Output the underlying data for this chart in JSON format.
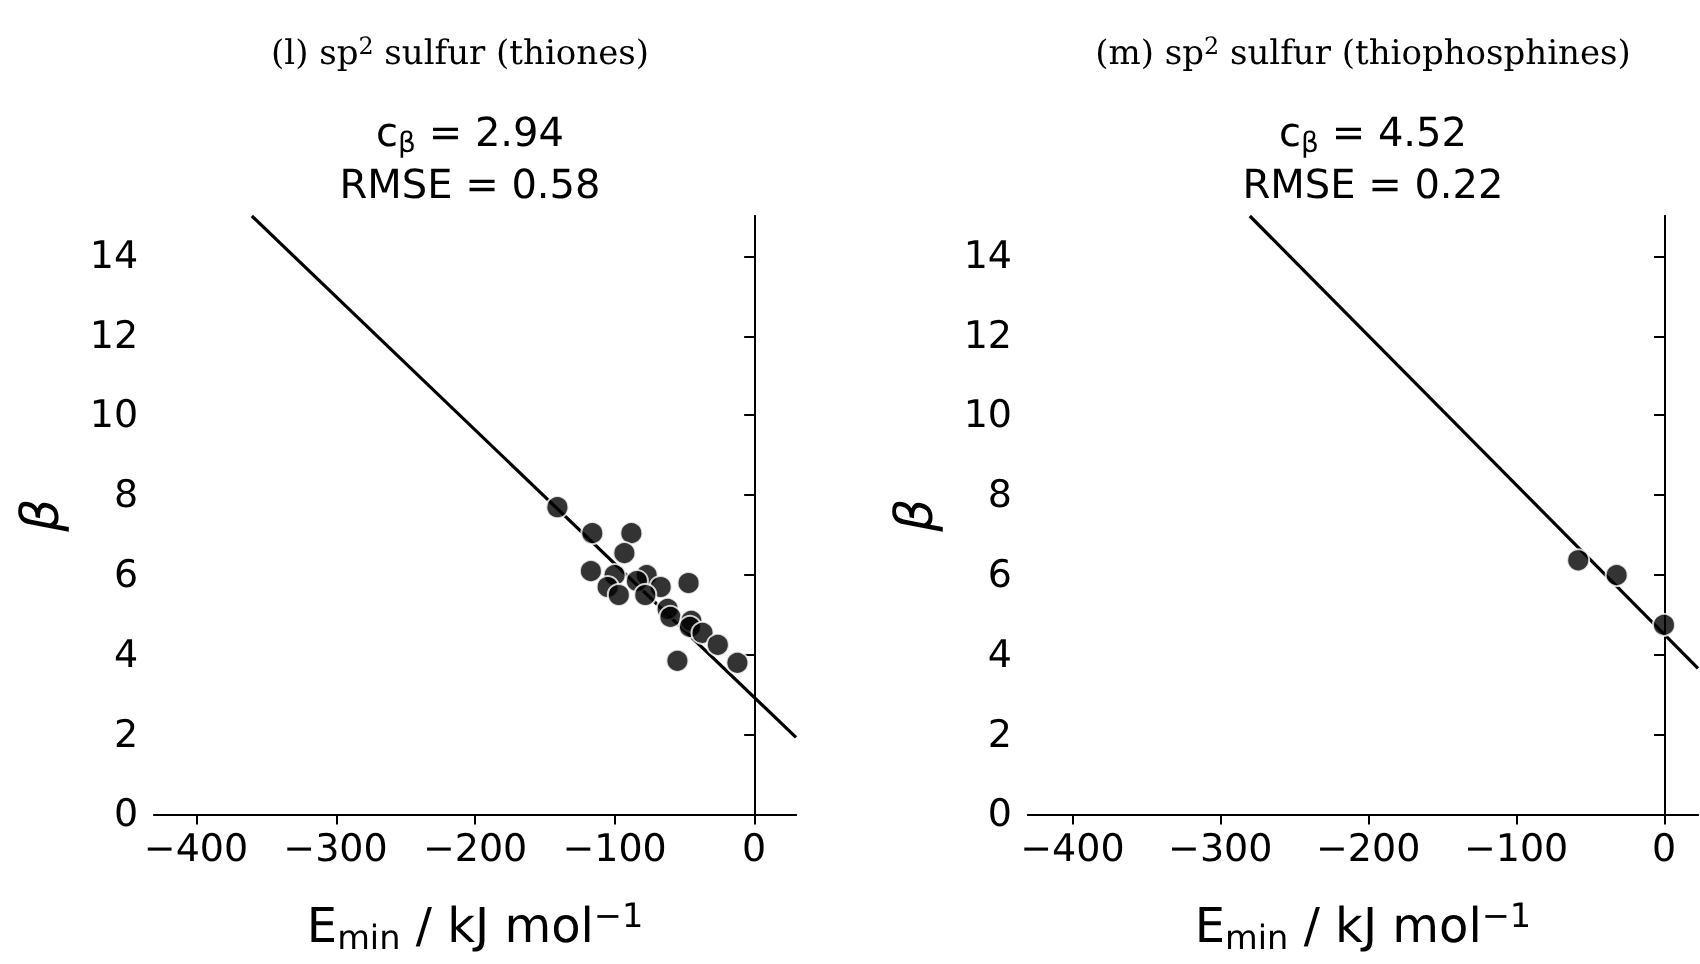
{
  "chart_data": [
    {
      "type": "scatter",
      "title": "(l) sp$^{2}$ sulfur (thiones)",
      "subtitle": "c$_{β}$ = 2.94\nRMSE = 0.58",
      "xlabel": "E$_{min}$ / kJ mol$^{−1}$",
      "ylabel": "β",
      "xlim": [
        -430,
        30
      ],
      "ylim": [
        0,
        15
      ],
      "xticks": [
        {
          "value": -400,
          "label": "−400"
        },
        {
          "value": -300,
          "label": "−300"
        },
        {
          "value": -200,
          "label": "−200"
        },
        {
          "value": -100,
          "label": "−100"
        },
        0
      ],
      "yticks": [
        0,
        2,
        4,
        6,
        8,
        10,
        12,
        14
      ],
      "series": [
        {
          "type": "scatter",
          "marker": "circle",
          "color": "#000000",
          "x": [
            -141,
            -116,
            -88,
            -93,
            -117,
            -100,
            -105,
            -97,
            -77,
            -84,
            -67,
            -78,
            -47,
            -62,
            -60,
            -45,
            -46,
            -37,
            -26,
            -12,
            -55
          ],
          "values": [
            7.7,
            7.05,
            7.05,
            6.55,
            6.1,
            6.0,
            5.7,
            5.5,
            6.0,
            5.85,
            5.7,
            5.5,
            5.8,
            5.15,
            4.95,
            4.85,
            4.7,
            4.55,
            4.25,
            3.8,
            3.85
          ]
        },
        {
          "type": "line",
          "color": "#000000",
          "x": [
            -360,
            30
          ],
          "values": [
            15,
            1.93
          ]
        }
      ]
    },
    {
      "type": "scatter",
      "title": "(m) sp$^{2}$ sulfur (thiophosphines)",
      "subtitle": "c$_{β}$ = 4.52\nRMSE = 0.22",
      "xlabel": "E$_{min}$ / kJ mol$^{−1}$",
      "ylabel": "β",
      "xlim": [
        -430,
        23
      ],
      "ylim": [
        0,
        15
      ],
      "xticks": [
        {
          "value": -400,
          "label": "−400"
        },
        {
          "value": -300,
          "label": "−300"
        },
        {
          "value": -200,
          "label": "−200"
        },
        {
          "value": -100,
          "label": "−100"
        },
        0
      ],
      "yticks": [
        0,
        2,
        4,
        6,
        8,
        10,
        12,
        14
      ],
      "series": [
        {
          "type": "scatter",
          "marker": "circle",
          "color": "#000000",
          "x": [
            -58,
            -32,
            0
          ],
          "values": [
            6.37,
            6.0,
            4.75
          ]
        },
        {
          "type": "line",
          "color": "#000000",
          "x": [
            -280,
            23
          ],
          "values": [
            15,
            3.66
          ]
        }
      ]
    }
  ]
}
